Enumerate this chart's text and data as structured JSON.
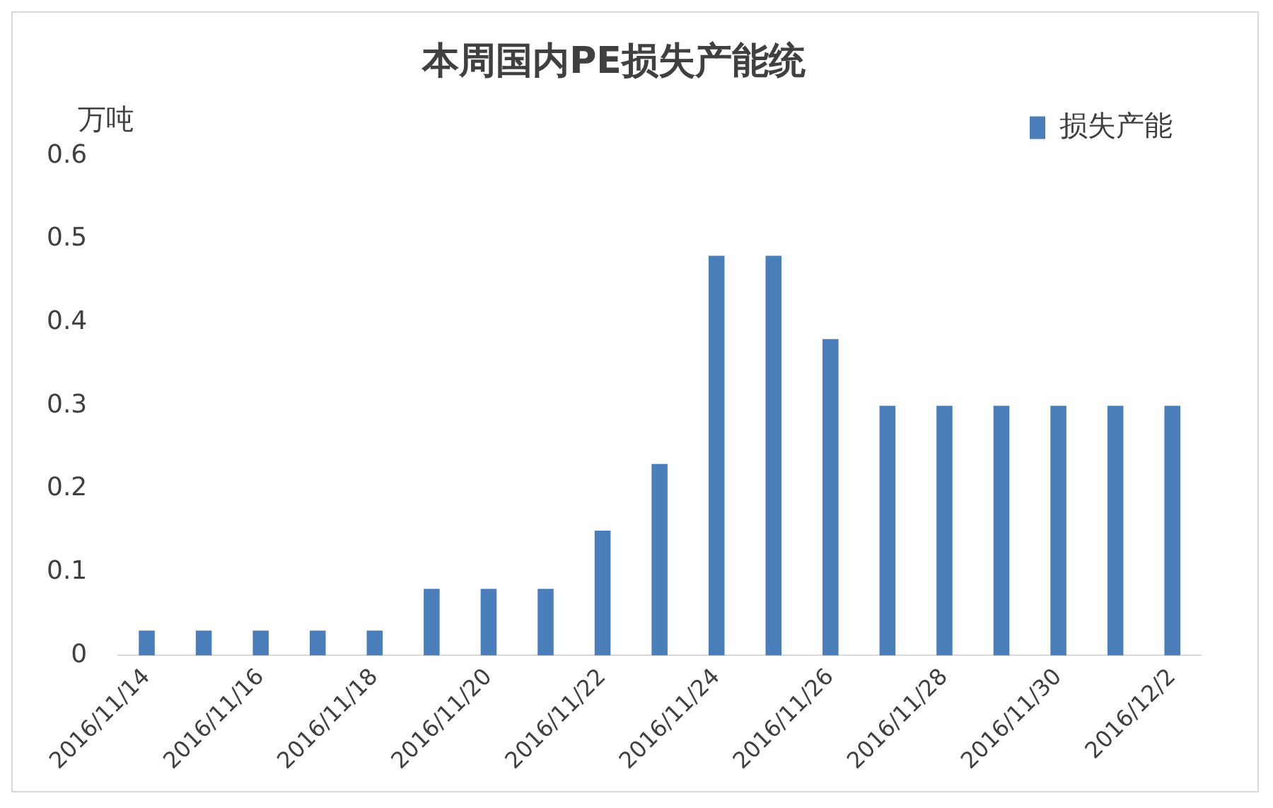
{
  "chart_data": {
    "type": "bar",
    "title": "本周国内PE损失产能统",
    "ylabel": "万吨",
    "categories": [
      "2016/11/14",
      null,
      "2016/11/16",
      null,
      "2016/11/18",
      null,
      "2016/11/20",
      null,
      "2016/11/22",
      null,
      "2016/11/24",
      null,
      "2016/11/26",
      null,
      "2016/11/28",
      null,
      "2016/11/30",
      null,
      "2016/12/2"
    ],
    "series": [
      {
        "name": "损失产能",
        "color": "#4a7ebb",
        "values": [
          0.03,
          0.03,
          0.03,
          0.03,
          0.03,
          0.08,
          0.08,
          0.08,
          0.15,
          0.23,
          0.48,
          0.48,
          0.38,
          0.3,
          0.3,
          0.3,
          0.3,
          0.3,
          0.3
        ]
      }
    ],
    "ylim": [
      0,
      0.6
    ],
    "yticks": [
      0,
      0.1,
      0.2,
      0.3,
      0.4,
      0.5,
      0.6
    ],
    "grid": false,
    "legend": "top right"
  }
}
